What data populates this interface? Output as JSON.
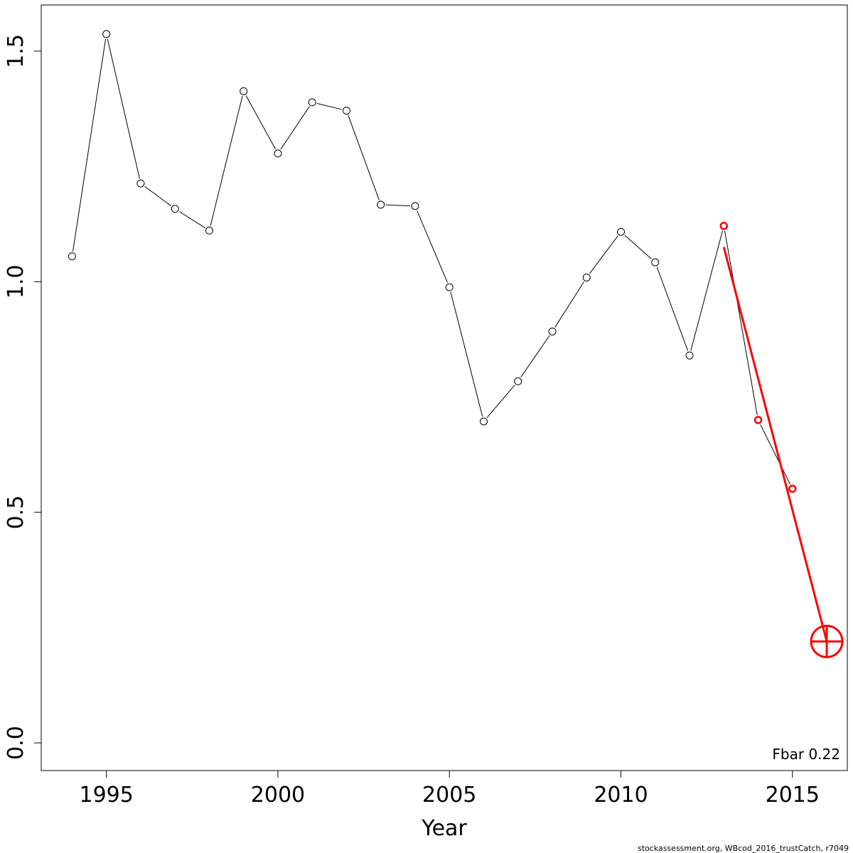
{
  "chart_data": {
    "type": "line",
    "xlabel": "Year",
    "ylabel": "",
    "xlim": [
      1993.1,
      2016.6
    ],
    "ylim": [
      -0.06,
      1.6
    ],
    "x_ticks": [
      1995,
      2000,
      2005,
      2010,
      2015
    ],
    "y_ticks": [
      0.0,
      0.5,
      1.0,
      1.5
    ],
    "y_tick_labels": [
      "0.0",
      "0.5",
      "1.0",
      "1.5"
    ],
    "grid": false,
    "series": [
      {
        "color": "#000000",
        "marker": "open-circle",
        "points": [
          {
            "x": 1994,
            "y": 1.055
          },
          {
            "x": 1995,
            "y": 1.537
          },
          {
            "x": 1996,
            "y": 1.213
          },
          {
            "x": 1997,
            "y": 1.158
          },
          {
            "x": 1998,
            "y": 1.111
          },
          {
            "x": 1999,
            "y": 1.413
          },
          {
            "x": 2000,
            "y": 1.278
          },
          {
            "x": 2001,
            "y": 1.389
          },
          {
            "x": 2002,
            "y": 1.371
          },
          {
            "x": 2003,
            "y": 1.167
          },
          {
            "x": 2004,
            "y": 1.164
          },
          {
            "x": 2005,
            "y": 0.988
          },
          {
            "x": 2006,
            "y": 0.697
          },
          {
            "x": 2007,
            "y": 0.784
          },
          {
            "x": 2008,
            "y": 0.892
          },
          {
            "x": 2009,
            "y": 1.009
          },
          {
            "x": 2010,
            "y": 1.108
          },
          {
            "x": 2011,
            "y": 1.042
          },
          {
            "x": 2012,
            "y": 0.84
          },
          {
            "x": 2013,
            "y": 1.121
          },
          {
            "x": 2014,
            "y": 0.7
          },
          {
            "x": 2015,
            "y": 0.551
          }
        ]
      },
      {
        "color": "#ff0000",
        "marker": "open-circle",
        "points": [
          {
            "x": 2013,
            "y": 1.121
          },
          {
            "x": 2014,
            "y": 0.7
          },
          {
            "x": 2015,
            "y": 0.551
          }
        ]
      }
    ],
    "trend_line": {
      "color": "#ff0000",
      "from": {
        "x": 2013,
        "y": 1.075
      },
      "to": {
        "x": 2016,
        "y": 0.22
      }
    },
    "target_marker": {
      "color": "#ff0000",
      "x": 2016,
      "y": 0.22,
      "symbol": "circle-plus"
    },
    "annotation": "Fbar 0.22",
    "annotation_position": "bottom-right",
    "footer": "stockassessment.org, WBcod_2016_trustCatch, r7049"
  }
}
